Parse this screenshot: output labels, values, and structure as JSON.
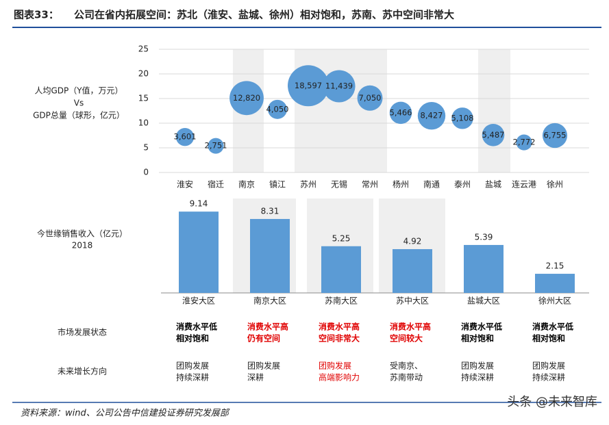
{
  "header": {
    "label": "图表33：",
    "title": "公司在省内拓展空间：苏北（淮安、盐城、徐州）相对饱和，苏南、苏中空间非常大"
  },
  "chart_data": [
    {
      "type": "bubble",
      "y_label": [
        "人均GDP（Y值，万元）",
        "Vs",
        "GDP总量（球形，亿元）"
      ],
      "categories": [
        "淮安",
        "宿迁",
        "南京",
        "镇江",
        "苏州",
        "无锡",
        "常州",
        "杨州",
        "南通",
        "泰州",
        "盐城",
        "连云港",
        "徐州"
      ],
      "values": [
        7.2,
        5.4,
        15.1,
        12.8,
        17.6,
        17.5,
        15.1,
        12.1,
        11.5,
        11.0,
        7.6,
        6.1,
        7.5
      ],
      "sizes": [
        3601,
        2751,
        12820,
        4050,
        18597,
        11439,
        7050,
        5466,
        8427,
        5108,
        5487,
        2772,
        6755
      ],
      "size_labels": [
        "3,601",
        "2,751",
        "12,820",
        "4,050",
        "18,597",
        "11,439",
        "7,050",
        "5,466",
        "8,427",
        "5,108",
        "5,487",
        "2,772",
        "6,755"
      ],
      "color": "#5b9bd5",
      "ylim": [
        0,
        25
      ],
      "yticks": [
        0,
        5,
        10,
        15,
        20,
        25
      ],
      "grid": true
    },
    {
      "type": "bar",
      "y_label": [
        "今世缘销售收入（亿元）",
        "2018"
      ],
      "categories": [
        "淮安大区",
        "南京大区",
        "苏南大区",
        "苏中大区",
        "盐城大区",
        "徐州大区"
      ],
      "values": [
        9.14,
        8.31,
        5.25,
        4.92,
        5.39,
        2.15
      ],
      "color": "#5b9bd5"
    }
  ],
  "table": {
    "rows": [
      {
        "label": "市场发展状态",
        "bold": true,
        "cells": [
          {
            "lines": [
              "消费水平低",
              "相对饱和"
            ],
            "color": "#000000"
          },
          {
            "lines": [
              "消费水平高",
              "仍有空间"
            ],
            "color": "#e00000"
          },
          {
            "lines": [
              "消费水平高",
              "空间非常大"
            ],
            "color": "#e00000"
          },
          {
            "lines": [
              "消费水平高",
              "空间较大"
            ],
            "color": "#e00000"
          },
          {
            "lines": [
              "消费水平低",
              "相对饱和"
            ],
            "color": "#000000"
          },
          {
            "lines": [
              "消费水平低",
              "相对饱和"
            ],
            "color": "#000000"
          }
        ]
      },
      {
        "label": "未来增长方向",
        "bold": false,
        "cells": [
          {
            "lines": [
              "团购发展",
              "持续深耕"
            ],
            "color": "#222222"
          },
          {
            "lines": [
              "团购发展",
              "深耕"
            ],
            "color": "#222222"
          },
          {
            "lines": [
              "团购发展",
              "高端影响力"
            ],
            "color": "#e00000"
          },
          {
            "lines": [
              "受南京、",
              "苏南带动"
            ],
            "color": "#222222"
          },
          {
            "lines": [
              "团购发展",
              "持续深耕"
            ],
            "color": "#222222"
          },
          {
            "lines": [
              "团购发展",
              "持续深耕"
            ],
            "color": "#222222"
          }
        ]
      }
    ]
  },
  "source": "资料来源：wind、公司公告中信建投证券研究发展部",
  "watermark": "头条 @未来智库"
}
